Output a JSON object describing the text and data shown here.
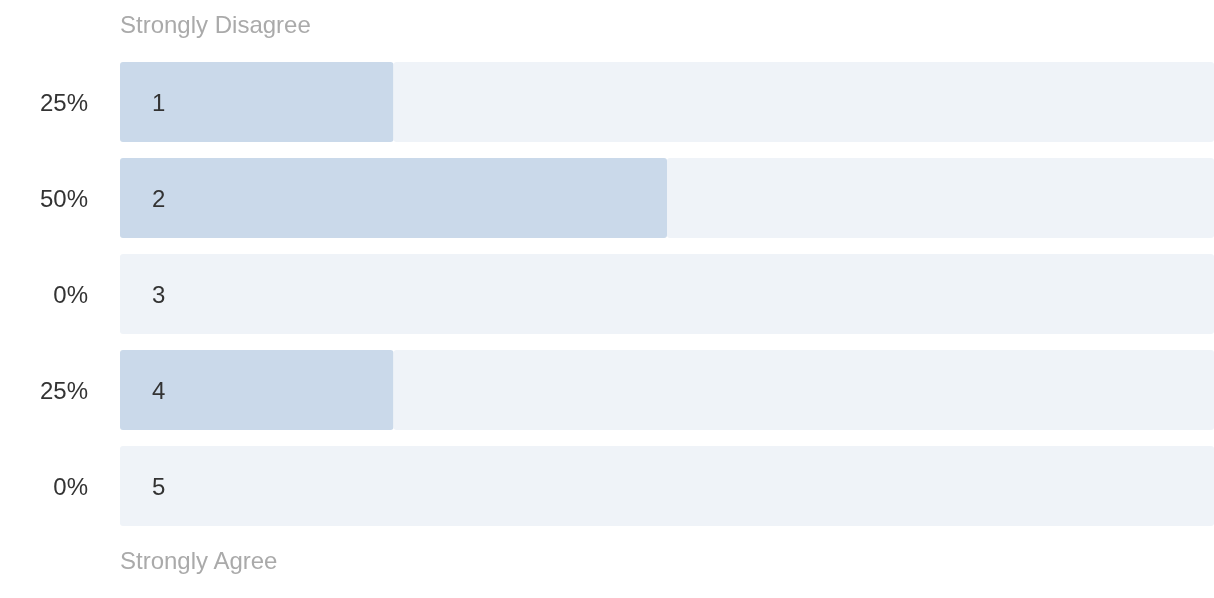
{
  "chart_data": {
    "type": "bar",
    "orientation": "horizontal",
    "stacked": true,
    "categories": [
      "1",
      "2",
      "3",
      "4",
      "5"
    ],
    "series": [
      {
        "color": "#cad9ea",
        "values": [
          25,
          50,
          0,
          25,
          0
        ],
        "value_labels": [
          "25%",
          "50%",
          "0%",
          "25%",
          "0%"
        ]
      },
      {
        "color": "#eff3f8",
        "values": [
          75,
          50,
          100,
          75,
          100
        ]
      }
    ],
    "xlim": [
      0,
      100
    ],
    "tick_labels": "y",
    "annotations": [
      "Strongly Disagree",
      "Strongly Agree"
    ]
  }
}
